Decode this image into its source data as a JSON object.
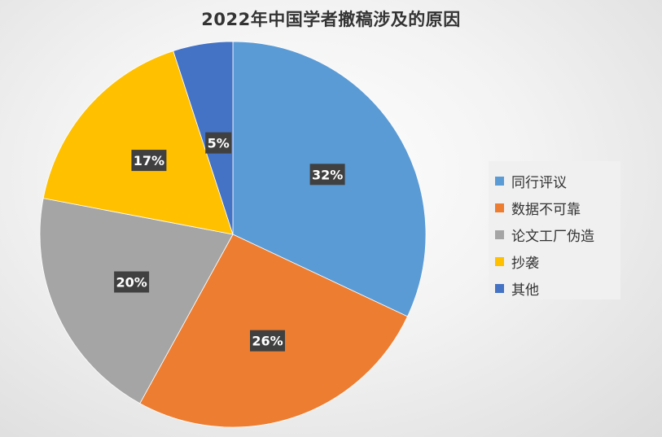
{
  "chart_data": {
    "type": "pie",
    "title": "2022年中国学者撤稿涉及的原因",
    "legend_position": "right",
    "start_angle_deg": 0,
    "direction": "clockwise",
    "slices": [
      {
        "label": "同行评议",
        "value": 32,
        "display": "32%",
        "color": "#5b9bd5"
      },
      {
        "label": "数据不可靠",
        "value": 26,
        "display": "26%",
        "color": "#ed7d31"
      },
      {
        "label": "论文工厂伪造",
        "value": 20,
        "display": "20%",
        "color": "#a5a5a5"
      },
      {
        "label": "抄袭",
        "value": 17,
        "display": "17%",
        "color": "#ffc000"
      },
      {
        "label": "其他",
        "value": 5,
        "display": "5%",
        "color": "#4472c4"
      }
    ]
  }
}
